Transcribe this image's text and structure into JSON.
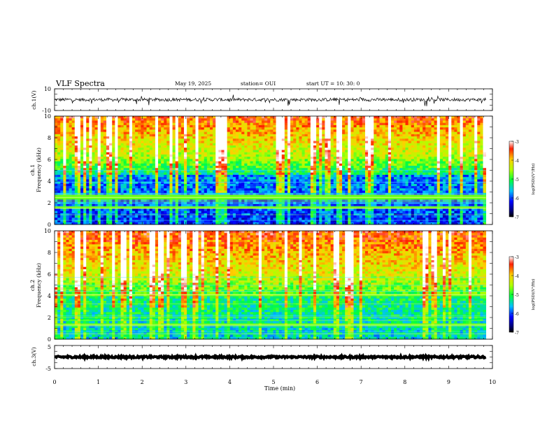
{
  "header": {
    "title": "VLF Spectra",
    "date": "May 19, 2025",
    "station": "station= OUI",
    "start_ut": "start  UT =   10: 30: 0"
  },
  "x_axis": {
    "label": "Time  (min)",
    "ticks": [
      "0",
      "1",
      "2",
      "3",
      "4",
      "5",
      "6",
      "7",
      "8",
      "9",
      "10"
    ],
    "range": [
      0,
      10
    ]
  },
  "panels": {
    "ch1_waveform": {
      "ylabel": "ch.1(V)",
      "ticks": [
        "10",
        "-10"
      ],
      "range": [
        -10,
        10
      ]
    },
    "ch1_spectrogram": {
      "ylabel": "ch.1",
      "ylabel2": "Frequency  (kHz)",
      "ticks": [
        "0",
        "2",
        "4",
        "6",
        "8",
        "10"
      ],
      "range": [
        0,
        10
      ]
    },
    "ch2_spectrogram": {
      "ylabel": "ch.2",
      "ylabel2": "Frequency  (kHz)",
      "ticks": [
        "0",
        "2",
        "4",
        "6",
        "8",
        "10"
      ],
      "range": [
        0,
        10
      ]
    },
    "ch3_waveform": {
      "ylabel": "ch.3(V)",
      "ticks": [
        "5",
        "-5"
      ],
      "range": [
        -5,
        5
      ]
    }
  },
  "colorbar": {
    "label": "log(PSD)(V²/Hz)",
    "ticks": [
      "-3",
      "-4",
      "-5",
      "-6",
      "-7"
    ],
    "range": [
      -7,
      -3
    ]
  },
  "chart_data": {
    "type": "heatmap",
    "x_unit": "min",
    "x_range": [
      0,
      10
    ],
    "data_end_min": 9.85,
    "series": [
      {
        "channel": "ch.1",
        "kind": "waveform",
        "ylim": [
          -10,
          10
        ],
        "baseline_v": 0,
        "noise_amplitude_v": 1.5
      },
      {
        "channel": "ch.1",
        "kind": "spectrogram",
        "ylim_khz": [
          0,
          10
        ],
        "features": [
          {
            "description": "strong band",
            "freq_khz": 1.5,
            "time_min": [
              0,
              9.85
            ]
          },
          {
            "description": "weak band",
            "freq_khz": 2.5,
            "time_min": [
              0,
              9.85
            ]
          }
        ],
        "psd_log_range": [
          -7,
          -3
        ]
      },
      {
        "channel": "ch.2",
        "kind": "spectrogram",
        "ylim_khz": [
          0,
          10
        ],
        "features": [
          {
            "description": "band",
            "freq_khz": 1.3,
            "time_min": [
              0,
              9.85
            ]
          },
          {
            "description": "band",
            "freq_khz": 4.1,
            "time_min": [
              0,
              9.85
            ]
          }
        ],
        "psd_log_range": [
          -7,
          -3
        ]
      },
      {
        "channel": "ch.3",
        "kind": "waveform",
        "ylim": [
          -5,
          5
        ],
        "baseline_v": 0,
        "noise_amplitude_v": 0.4
      }
    ]
  }
}
